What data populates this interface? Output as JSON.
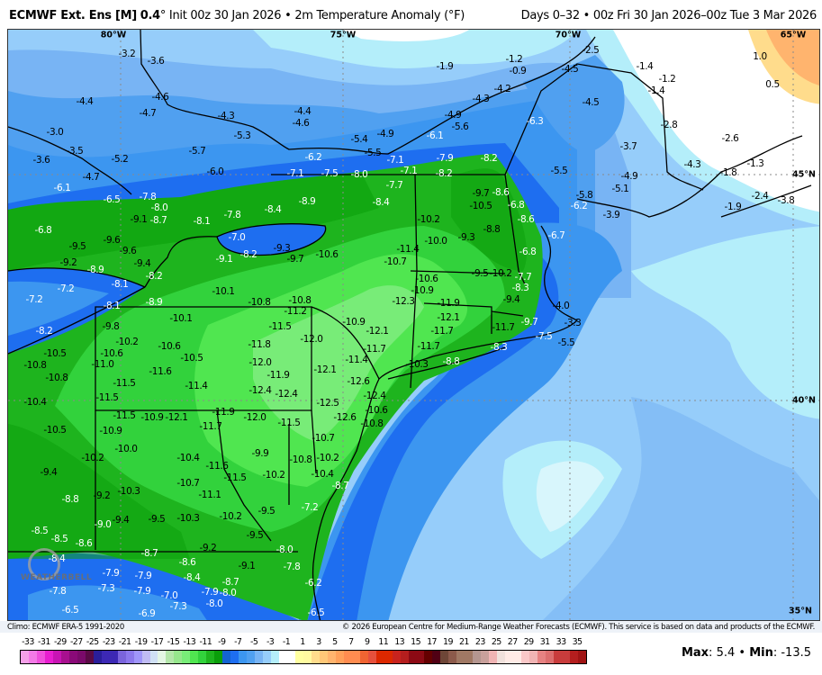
{
  "header": {
    "model": "ECMWF Ext. Ens [M]",
    "resolution": "0.4",
    "resolution_unit": "°",
    "init": "Init 00z 30 Jan 2026",
    "separator": "•",
    "variable": "2m Temperature Anomaly (°F)",
    "range": "Days 0–32 • 00z Fri 30 Jan 2026–00z Tue 3 Mar 2026"
  },
  "map": {
    "longitude_labels": [
      "80°W",
      "75°W",
      "70°W",
      "65°W"
    ],
    "latitude_labels": [
      "45°N",
      "40°N",
      "35°N"
    ],
    "logo_text": "WEATHERBELL",
    "labels": [
      "-3.2",
      "-3.6",
      "-4.4",
      "-4.6",
      "-4.7",
      "-4.3",
      "-5.3",
      "-3.0",
      "-3.5",
      "-3.6",
      "-5.2",
      "-5.7",
      "-6.0",
      "-4.7",
      "-6.1",
      "-6.5",
      "-7.8",
      "-8.0",
      "-9.1",
      "-8.7",
      "-8.1",
      "-7.8",
      "-8.4",
      "-6.8",
      "-9.5",
      "-9.6",
      "-9.2",
      "-8.9",
      "-9.6",
      "-9.4",
      "-8.2",
      "-8.1",
      "-7.2",
      "-7.2",
      "-8.1",
      "-8.9",
      "-9.8",
      "-8.2",
      "-10.1",
      "-10.2",
      "-10.6",
      "-10.6",
      "-10.5",
      "-10.5",
      "-10.8",
      "-11.0",
      "-10.8",
      "-11.6",
      "-11.5",
      "-11.5",
      "-11.4",
      "-10.4",
      "-10.1",
      "-10.8",
      "-9.1",
      "-8.2",
      "-7.0",
      "-11.8",
      "-12.0",
      "-12.4",
      "-11.5",
      "-10.9",
      "-12.1",
      "-11.9",
      "-12.0",
      "-1.9",
      "-1.2",
      "-0.9",
      "-4.2",
      "-4.3",
      "-4.9",
      "-5.6",
      "-6.1",
      "-6.3",
      "-4.4",
      "-4.6",
      "-5.4",
      "-4.9",
      "-5.5",
      "-6.2",
      "-7.1",
      "-7.1",
      "-7.9",
      "-8.2",
      "-7.1",
      "-7.5",
      "-8.0",
      "-7.7",
      "-8.2",
      "-8.9",
      "-8.4",
      "-9.7",
      "-10.5",
      "-8.6",
      "-6.8",
      "-8.6",
      "-10.2",
      "-2.5",
      "-4.5",
      "-1.4",
      "-1.2",
      "-1.4",
      "1.0",
      "0.5",
      "-4.5",
      "-2.8",
      "-2.6",
      "-3.7",
      "-1.3",
      "-4.3",
      "-1.8",
      "-5.5",
      "-4.9",
      "-5.1",
      "-5.8",
      "-6.2",
      "-3.9",
      "-2.4",
      "-3.8",
      "-1.9",
      "-8.8",
      "-6.7",
      "-9.3",
      "-10.0",
      "-9.3",
      "-9.7",
      "-10.6",
      "-11.4",
      "-10.7",
      "-6.8",
      "-10.6",
      "-10.9",
      "-12.3",
      "-9.5",
      "-10.2",
      "-8.3",
      "-9.4",
      "-7.7",
      "-10.8",
      "-11.2",
      "-11.5",
      "-11.9",
      "-12.1",
      "-10.9",
      "-12.1",
      "-11.7",
      "-11.7",
      "-9.7",
      "-4.0",
      "-3.3",
      "-7.5",
      "-5.5",
      "-12.0",
      "-11.7",
      "-11.4",
      "-11.7",
      "-8.3",
      "-10.3",
      "-8.8",
      "-12.1",
      "-12.6",
      "-12.4",
      "-11.9",
      "-12.4",
      "-12.5",
      "-12.6",
      "-10.6",
      "-10.5",
      "-10.9",
      "-10.0",
      "-10.2",
      "-10.4",
      "-9.4",
      "-10.7",
      "-8.8",
      "-9.2",
      "-10.3",
      "-9.4",
      "-9.5",
      "-10.3",
      "-9.0",
      "-8.5",
      "-8.5",
      "-8.6",
      "-8.7",
      "-8.6",
      "-8.4",
      "-7.9",
      "-7.9",
      "-7.3",
      "-7.9",
      "-7.8",
      "-7.3",
      "-6.9",
      "-7.0",
      "-6.5",
      "-11.7",
      "-11.5",
      "-10.8",
      "-10.7",
      "-10.2",
      "-10.4",
      "-8.7",
      "-9.9",
      "-10.8",
      "-10.2",
      "-11.5",
      "-11.6",
      "-11.1",
      "-7.2",
      "-9.5",
      "-10.2",
      "-9.5",
      "-8.0",
      "-9.2",
      "-9.1",
      "-7.8",
      "-8.7",
      "-8.4",
      "-6.2",
      "-8.0",
      "-7.9",
      "-8.0",
      "-6.5"
    ]
  },
  "footer": {
    "climo": "Climo: ECMWF ERA-5 1991-2020",
    "copyright": "© 2026 European Centre for Medium-Range Weather Forecasts (ECMWF). This service is based on data and products of the ECMWF.",
    "max_label": "Max",
    "max_value": "5.4",
    "min_label": "Min",
    "min_value": "-13.5"
  },
  "colorbar": {
    "ticks": [
      "-33",
      "-31",
      "-29",
      "-27",
      "-25",
      "-23",
      "-21",
      "-19",
      "-17",
      "-15",
      "-13",
      "-11",
      "-9",
      "-7",
      "-5",
      "-3",
      "-1",
      "1",
      "3",
      "5",
      "7",
      "9",
      "11",
      "13",
      "15",
      "17",
      "19",
      "21",
      "23",
      "25",
      "27",
      "29",
      "31",
      "33",
      "35"
    ],
    "colors": [
      "#f5a0e8",
      "#f47ae6",
      "#f050dc",
      "#e81ed0",
      "#c814b4",
      "#a8108f",
      "#8a0a78",
      "#7a0a6a",
      "#5a0a45",
      "#2a1e9a",
      "#3c28b4",
      "#3c28b4",
      "#7a64dc",
      "#8c78ec",
      "#a096fa",
      "#c0bcf4",
      "#d0e0f4",
      "#e4f6e4",
      "#b4e6aa",
      "#96e68c",
      "#78ec78",
      "#50e650",
      "#32d23c",
      "#1eb41e",
      "#0a9e0a",
      "#1464d2",
      "#1e6ef0",
      "#3c96f0",
      "#50a0f0",
      "#78b4f4",
      "#96cdfa",
      "#b4eefa",
      "#ffffff",
      "#ffffff",
      "#ffffa0",
      "#fffaa0",
      "#ffdc8c",
      "#ffc878",
      "#ffb46e",
      "#ffa05a",
      "#ff8c50",
      "#ff8c50",
      "#f06432",
      "#e6503c",
      "#dc2800",
      "#dc2800",
      "#c8231e",
      "#b41e1e",
      "#8c0a14",
      "#8c0a14",
      "#640000",
      "#500014",
      "#6e4637",
      "#8c5a4b",
      "#a07864",
      "#a07864",
      "#b49690",
      "#c8a09b",
      "#f0b4b4",
      "#f0e1dc",
      "#ffebe6",
      "#ffebe6",
      "#fac8c8",
      "#f0b4b4",
      "#e68282",
      "#dc6e6e",
      "#c83c3c",
      "#c83c3c",
      "#b41e1e",
      "#a01414"
    ]
  }
}
